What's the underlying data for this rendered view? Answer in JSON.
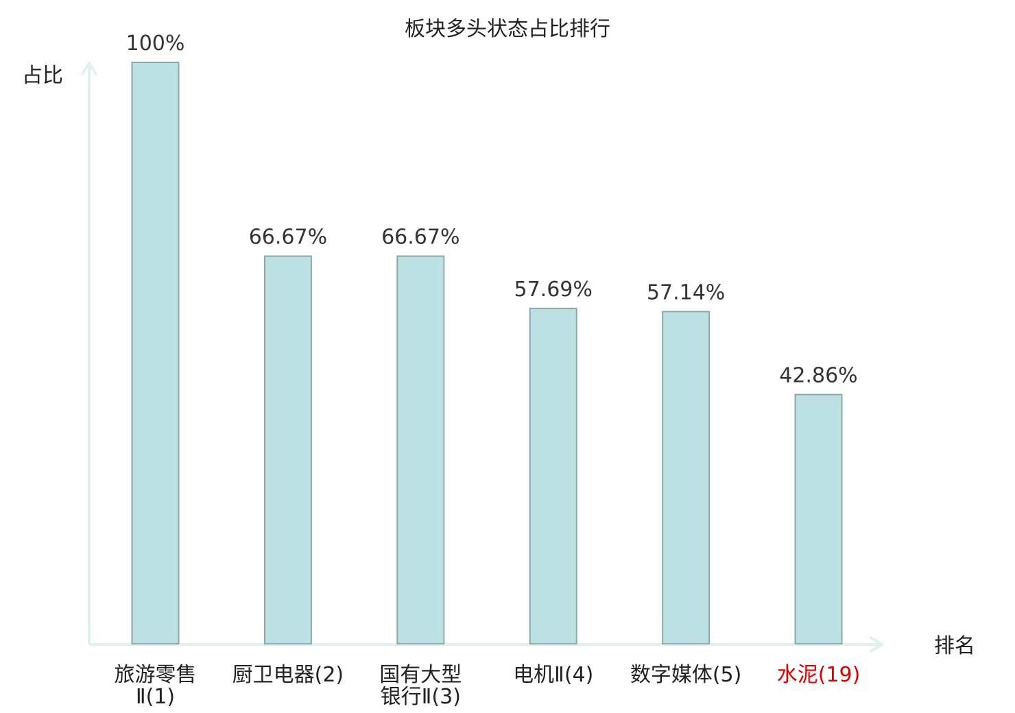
{
  "chart_data": {
    "type": "bar",
    "title": "板块多头状态占比排行",
    "ylabel": "占比",
    "xlabel": "排名",
    "ylim": [
      0,
      100
    ],
    "grid": false,
    "categories": [
      {
        "name": "旅游零售",
        "name_line2": "Ⅱ(1)",
        "highlight": false
      },
      {
        "name": "厨卫电器(2)",
        "name_line2": "",
        "highlight": false
      },
      {
        "name": "国有大型",
        "name_line2": "银行Ⅱ(3)",
        "highlight": false
      },
      {
        "name": "电机Ⅱ(4)",
        "name_line2": "",
        "highlight": false
      },
      {
        "name": "数字媒体(5)",
        "name_line2": "",
        "highlight": false
      },
      {
        "name": "水泥(19)",
        "name_line2": "",
        "highlight": true
      }
    ],
    "values": [
      100,
      66.67,
      66.67,
      57.69,
      57.14,
      42.86
    ],
    "value_labels": [
      "100%",
      "66.67%",
      "66.67%",
      "57.69%",
      "57.14%",
      "42.86%"
    ],
    "colors": {
      "bar_fill": "#bde0e3",
      "bar_stroke": "#8aa8ad",
      "axis": "#e0f2ef",
      "text": "#222222",
      "highlight_text": "#dd0000"
    }
  }
}
